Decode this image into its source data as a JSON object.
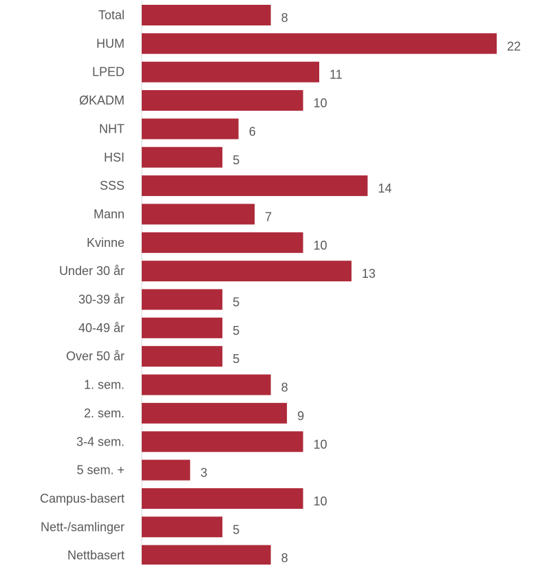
{
  "chart_data": {
    "type": "bar",
    "orientation": "horizontal",
    "categories": [
      "Total",
      "HUM",
      "LPED",
      "ØKADM",
      "NHT",
      "HSI",
      "SSS",
      "Mann",
      "Kvinne",
      "Under 30 år",
      "30-39 år",
      "40-49 år",
      "Over 50 år",
      "1. sem.",
      "2. sem.",
      "3-4 sem.",
      "5 sem. +",
      "Campus-basert",
      "Nett-/samlinger",
      "Nettbasert"
    ],
    "values": [
      8,
      22,
      11,
      10,
      6,
      5,
      14,
      7,
      10,
      13,
      5,
      5,
      5,
      8,
      9,
      10,
      3,
      10,
      5,
      8
    ],
    "title": "",
    "xlabel": "",
    "ylabel": "",
    "xlim": [
      0,
      22
    ],
    "grid": false,
    "legend": "none",
    "data_labels": true,
    "colors": {
      "bar": "#AE2A3A",
      "label": "#595959",
      "axis": "#D9D9D9"
    }
  }
}
